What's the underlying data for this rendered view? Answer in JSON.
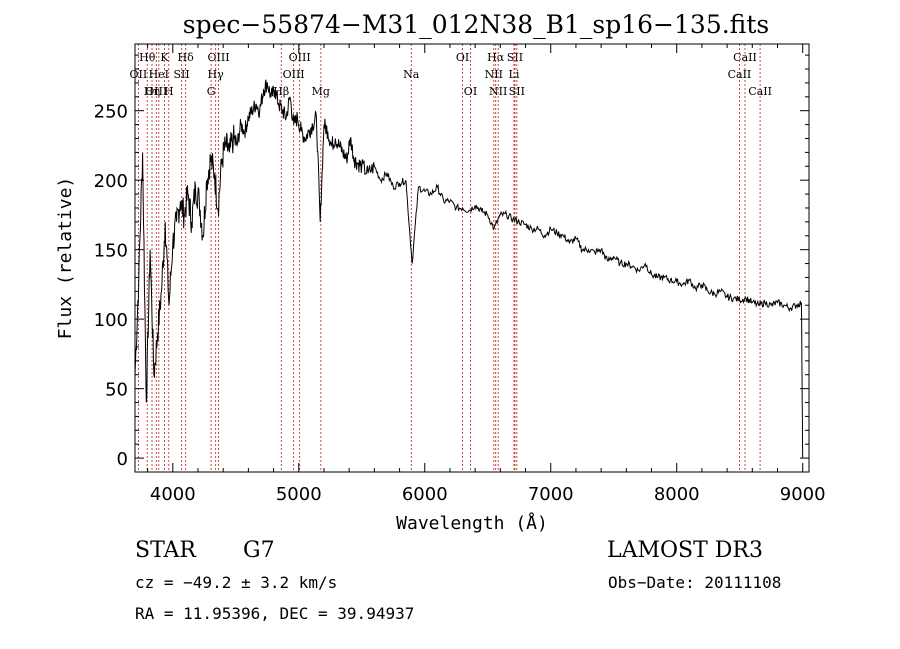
{
  "chart_data": {
    "type": "line",
    "title": "spec−55874−M31_012N38_B1_sp16−135.fits",
    "xlabel": "Wavelength (Å)",
    "ylabel": "Flux (relative)",
    "xlim": [
      3700,
      9050
    ],
    "ylim": [
      -10,
      298
    ],
    "xticks": [
      4000,
      5000,
      6000,
      7000,
      8000,
      9000
    ],
    "yticks": [
      0,
      50,
      100,
      150,
      200,
      250
    ],
    "grid": false,
    "series": [
      {
        "name": "spectrum",
        "x": [
          3700,
          3730,
          3760,
          3790,
          3820,
          3850,
          3880,
          3910,
          3940,
          3970,
          4000,
          4030,
          4060,
          4090,
          4120,
          4150,
          4180,
          4210,
          4240,
          4270,
          4300,
          4330,
          4360,
          4390,
          4420,
          4450,
          4480,
          4510,
          4540,
          4570,
          4600,
          4630,
          4660,
          4690,
          4720,
          4750,
          4780,
          4810,
          4840,
          4870,
          4900,
          4930,
          4960,
          4990,
          5020,
          5050,
          5080,
          5110,
          5140,
          5170,
          5200,
          5230,
          5260,
          5290,
          5320,
          5350,
          5380,
          5410,
          5440,
          5470,
          5500,
          5550,
          5600,
          5650,
          5700,
          5750,
          5800,
          5850,
          5900,
          5950,
          6000,
          6050,
          6100,
          6150,
          6200,
          6250,
          6300,
          6350,
          6400,
          6450,
          6500,
          6550,
          6600,
          6650,
          6700,
          6750,
          6800,
          6850,
          6900,
          6950,
          7000,
          7050,
          7100,
          7150,
          7200,
          7250,
          7300,
          7350,
          7400,
          7450,
          7500,
          7550,
          7600,
          7650,
          7700,
          7750,
          7800,
          7850,
          7900,
          7950,
          8000,
          8050,
          8100,
          8150,
          8200,
          8250,
          8300,
          8350,
          8400,
          8450,
          8500,
          8550,
          8600,
          8650,
          8700,
          8750,
          8800,
          8850,
          8900,
          8950,
          8990,
          9000
        ],
        "y": [
          60,
          130,
          220,
          40,
          150,
          60,
          90,
          120,
          170,
          110,
          155,
          170,
          185,
          175,
          190,
          170,
          195,
          185,
          160,
          200,
          215,
          205,
          180,
          215,
          225,
          220,
          230,
          225,
          240,
          235,
          245,
          250,
          255,
          250,
          265,
          270,
          260,
          265,
          255,
          250,
          245,
          260,
          240,
          245,
          235,
          230,
          235,
          240,
          245,
          170,
          240,
          235,
          225,
          230,
          225,
          220,
          215,
          230,
          215,
          212,
          210,
          205,
          210,
          200,
          205,
          195,
          198,
          200,
          140,
          195,
          192,
          190,
          195,
          185,
          185,
          180,
          180,
          178,
          182,
          178,
          175,
          165,
          175,
          175,
          172,
          170,
          168,
          165,
          165,
          160,
          165,
          162,
          160,
          155,
          158,
          150,
          150,
          148,
          150,
          142,
          145,
          140,
          140,
          138,
          135,
          140,
          132,
          130,
          130,
          128,
          127,
          125,
          128,
          122,
          125,
          120,
          118,
          120,
          116,
          115,
          114,
          115,
          112,
          110,
          112,
          110,
          112,
          110,
          108,
          110,
          112,
          0
        ]
      }
    ],
    "lines": [
      {
        "label": "Hθ",
        "x": 3797,
        "row": 0
      },
      {
        "label": "OII",
        "x": 3727,
        "row": 1
      },
      {
        "label": "OIII",
        "x": 3869,
        "row": 2
      },
      {
        "label": "Hη",
        "x": 3835,
        "row": 2
      },
      {
        "label": "HeI",
        "x": 3889,
        "row": 1
      },
      {
        "label": "K",
        "x": 3934,
        "row": 0
      },
      {
        "label": "H",
        "x": 3968,
        "row": 2
      },
      {
        "label": "SII",
        "x": 4070,
        "row": 1
      },
      {
        "label": "Hδ",
        "x": 4102,
        "row": 0
      },
      {
        "label": "OIII",
        "x": 4363,
        "row": 0
      },
      {
        "label": "Hγ",
        "x": 4340,
        "row": 1
      },
      {
        "label": "G",
        "x": 4304,
        "row": 2
      },
      {
        "label": "Hβ",
        "x": 4861,
        "row": 2
      },
      {
        "label": "OIII",
        "x": 4959,
        "row": 1
      },
      {
        "label": "OIII",
        "x": 5007,
        "row": 0
      },
      {
        "label": "Mg",
        "x": 5175,
        "row": 2
      },
      {
        "label": "Na",
        "x": 5893,
        "row": 1
      },
      {
        "label": "OI",
        "x": 6300,
        "row": 0
      },
      {
        "label": "OI",
        "x": 6363,
        "row": 2
      },
      {
        "label": "Hα",
        "x": 6563,
        "row": 0
      },
      {
        "label": "NII",
        "x": 6548,
        "row": 1
      },
      {
        "label": "NII",
        "x": 6583,
        "row": 2
      },
      {
        "label": "SII",
        "x": 6716,
        "row": 0
      },
      {
        "label": "Li",
        "x": 6708,
        "row": 1
      },
      {
        "label": "SII",
        "x": 6731,
        "row": 2
      },
      {
        "label": "CaII",
        "x": 8542,
        "row": 0
      },
      {
        "label": "CaII",
        "x": 8498,
        "row": 1
      },
      {
        "label": "CaII",
        "x": 8662,
        "row": 2
      }
    ]
  },
  "info": {
    "class_label": "STAR",
    "subclass": "G7",
    "survey": "LAMOST DR3",
    "cz": "cz = −49.2 ± 3.2 km/s",
    "obs_date": "Obs−Date: 20111108",
    "coords": "RA =  11.95396, DEC =  39.94937"
  },
  "colors": {
    "line_marker": "#c0392b",
    "spectrum": "#000000",
    "axis": "#000000"
  }
}
